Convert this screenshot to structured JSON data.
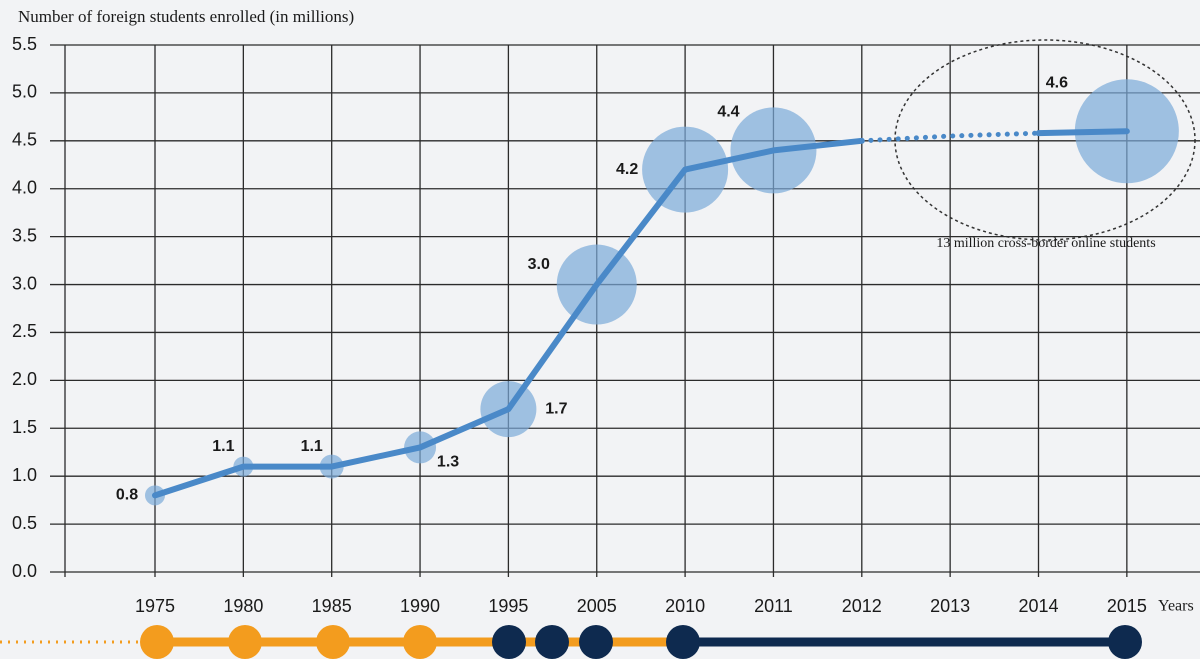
{
  "chart_data": {
    "type": "line",
    "ylabel": "Number of foreign students enrolled (in millions)",
    "xlabel": "Years",
    "categories": [
      "1975",
      "1980",
      "1985",
      "1990",
      "1995",
      "2005",
      "2010",
      "2011",
      "2012",
      "2013",
      "2014",
      "2015"
    ],
    "series": [
      {
        "style": "solid",
        "color": "#4a89c8",
        "values": [
          0.8,
          1.1,
          1.1,
          1.3,
          1.7,
          3.0,
          4.2,
          4.4,
          4.5,
          null,
          4.58,
          4.6
        ],
        "value_labels": [
          "0.8",
          "1.1",
          "1.1",
          "1.3",
          "1.7",
          "3.0",
          "4.2",
          "4.4",
          null,
          null,
          null,
          "4.6"
        ],
        "sizes": [
          10,
          10,
          12,
          16,
          28,
          40,
          43,
          43,
          null,
          null,
          null,
          52
        ]
      },
      {
        "style": "dotted",
        "color": "#4a89c8",
        "values": [
          null,
          null,
          null,
          null,
          null,
          null,
          null,
          null,
          4.5,
          4.55,
          4.58,
          null
        ]
      }
    ],
    "bubble_color": "#7aa9d9",
    "annotation": "13 million cross-border online students",
    "ylim": [
      0,
      5.5
    ],
    "yticks": [
      {
        "value": 0,
        "label": "0.0"
      },
      0.5,
      {
        "value": 1,
        "label": "1.0"
      },
      1.5,
      {
        "value": 2,
        "label": "2.0"
      },
      2.5,
      {
        "value": 3,
        "label": "3.0"
      },
      3.5,
      {
        "value": 4,
        "label": "4.0"
      },
      4.5,
      {
        "value": 5,
        "label": "5.0"
      },
      5.5
    ],
    "grid": true
  }
}
